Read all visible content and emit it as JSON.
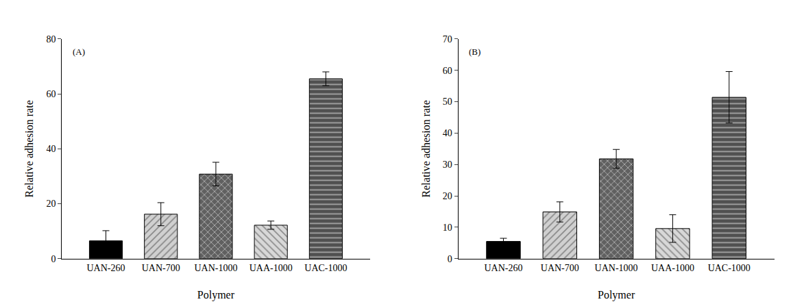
{
  "chart_data": [
    {
      "type": "bar",
      "annotation": "(A)",
      "x_label": "Polymer",
      "y_label": "Relative adhesion rate",
      "categories": [
        "UAN-260",
        "UAN-700",
        "UAN-1000",
        "UAA-1000",
        "UAC-1000"
      ],
      "values": [
        6.5,
        16.2,
        30.8,
        12.2,
        65.5
      ],
      "errors": [
        3.7,
        4.2,
        4.3,
        1.5,
        2.5
      ],
      "colors": [
        "#000000",
        "#d0d0d0",
        "#606060",
        "#d8d8d8",
        "#505050"
      ],
      "ylim": [
        0,
        80
      ],
      "yticks": [
        0,
        20,
        40,
        60,
        80
      ],
      "grid": false
    },
    {
      "type": "bar",
      "annotation": "(B)",
      "x_label": "Polymer",
      "y_label": "Relative adhesion rate",
      "categories": [
        "UAN-260",
        "UAN-700",
        "UAN-1000",
        "UAA-1000",
        "UAC-1000"
      ],
      "values": [
        5.5,
        14.9,
        31.8,
        9.6,
        51.4
      ],
      "errors": [
        1.0,
        3.2,
        3.0,
        4.4,
        8.2
      ],
      "colors": [
        "#000000",
        "#d0d0d0",
        "#606060",
        "#d8d8d8",
        "#505050"
      ],
      "ylim": [
        0,
        70
      ],
      "yticks": [
        0,
        10,
        20,
        30,
        40,
        50,
        60,
        70
      ],
      "grid": false
    }
  ]
}
